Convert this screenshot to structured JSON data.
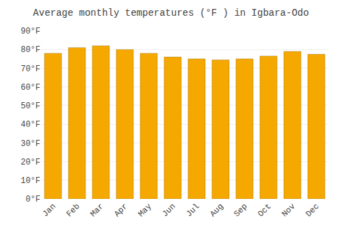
{
  "chart_data": {
    "type": "bar",
    "title": "Average monthly temperatures (°F ) in Igbara-Odo",
    "categories": [
      "Jan",
      "Feb",
      "Mar",
      "Apr",
      "May",
      "Jun",
      "Jul",
      "Aug",
      "Sep",
      "Oct",
      "Nov",
      "Dec"
    ],
    "values": [
      78,
      81,
      82,
      80,
      78,
      76,
      75,
      74.5,
      75,
      76.5,
      79,
      77.5
    ],
    "color": "#F5A800",
    "ylim": [
      0,
      90
    ],
    "yticks": [
      {
        "value": 0,
        "label": "0°F"
      },
      {
        "value": 10,
        "label": "10°F"
      },
      {
        "value": 20,
        "label": "20°F"
      },
      {
        "value": 30,
        "label": "30°F"
      },
      {
        "value": 40,
        "label": "40°F"
      },
      {
        "value": 50,
        "label": "50°F"
      },
      {
        "value": 60,
        "label": "60°F"
      },
      {
        "value": 70,
        "label": "70°F"
      },
      {
        "value": 80,
        "label": "80°F"
      },
      {
        "value": 90,
        "label": "90°F"
      }
    ],
    "grid": true
  }
}
